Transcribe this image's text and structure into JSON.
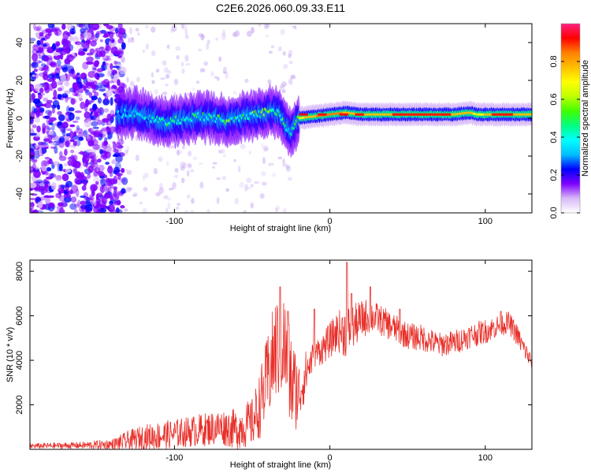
{
  "title": "C2E6.2026.060.09.33.E11",
  "colors": {
    "snr_line": "#e8302a",
    "ridge_core": "#e8303a",
    "ridge_mid": "#7ee040",
    "ridge_edge": "#36e0c8",
    "noise": "#5a1ee0",
    "frame": "#000000"
  },
  "chart_data": [
    {
      "type": "heatmap",
      "title": "C2E6.2026.060.09.33.E11",
      "xlabel": "Height of straight line (km)",
      "ylabel": "Frequency (Hz)",
      "xlim": [
        -193,
        130
      ],
      "ylim": [
        -50,
        50
      ],
      "xticks": [
        -100,
        0,
        100
      ],
      "xtick_labels": [
        "-100",
        "0",
        "100"
      ],
      "yticks": [
        -40,
        -20,
        0,
        20,
        40
      ],
      "ytick_labels": [
        "-40",
        "-20",
        "0",
        "20",
        "40"
      ],
      "colorbar": {
        "label": "Normalized spectral amplitude",
        "range": [
          0,
          1
        ],
        "ticks": [
          0.0,
          0.2,
          0.4,
          0.6,
          0.8
        ],
        "tick_labels": [
          "0.0",
          "0.2",
          "0.4",
          "0.6",
          "0.8"
        ],
        "colormap": [
          "#ffffff",
          "#d8b8f8",
          "#7f00ff",
          "#0000ff",
          "#00bfff",
          "#00ffff",
          "#00ff80",
          "#40ff00",
          "#bfff00",
          "#ffff00",
          "#ffbf00",
          "#ff8000",
          "#ff0000",
          "#ff1f7f"
        ]
      },
      "ridge": {
        "x": [
          -135,
          -125,
          -115,
          -105,
          -95,
          -85,
          -75,
          -65,
          -55,
          -45,
          -38,
          -32,
          -28,
          -25,
          -20,
          -10,
          0,
          10,
          20,
          40,
          60,
          80,
          90,
          95,
          100,
          110,
          130
        ],
        "y": [
          2,
          3,
          0,
          -2,
          -1,
          1,
          0,
          -1,
          1,
          2,
          4,
          2,
          -4,
          -8,
          0,
          1,
          2,
          3,
          2,
          2,
          2,
          2,
          3,
          2,
          2,
          2,
          2
        ],
        "amplitude": [
          0.35,
          0.4,
          0.45,
          0.5,
          0.45,
          0.5,
          0.5,
          0.55,
          0.5,
          0.55,
          0.6,
          0.6,
          0.5,
          0.4,
          0.7,
          0.8,
          0.85,
          0.8,
          0.8,
          0.75,
          0.7,
          0.75,
          0.8,
          0.65,
          0.75,
          0.75,
          0.75
        ]
      }
    },
    {
      "type": "line",
      "xlabel": "Height of straight line (km)",
      "ylabel": "SNR (10 * v/v)",
      "xlim": [
        -193,
        130
      ],
      "ylim": [
        0,
        8500
      ],
      "xticks": [
        -100,
        0,
        100
      ],
      "xtick_labels": [
        "-100",
        "0",
        "100"
      ],
      "yticks": [
        2000,
        4000,
        6000,
        8000
      ],
      "ytick_labels": [
        "2000",
        "4000",
        "6000",
        "8000"
      ],
      "series": [
        {
          "name": "SNR",
          "x": [
            -193,
            -160,
            -140,
            -130,
            -120,
            -110,
            -100,
            -90,
            -80,
            -70,
            -60,
            -50,
            -45,
            -40,
            -35,
            -30,
            -25,
            -20,
            -15,
            -10,
            -5,
            0,
            5,
            10,
            15,
            20,
            25,
            30,
            40,
            50,
            60,
            70,
            80,
            90,
            100,
            110,
            115,
            120,
            125,
            130
          ],
          "y": [
            150,
            180,
            220,
            380,
            550,
            600,
            700,
            800,
            900,
            1000,
            900,
            1200,
            2000,
            3200,
            4500,
            4800,
            3000,
            2500,
            3500,
            4300,
            4500,
            4900,
            5300,
            5300,
            5500,
            5800,
            6000,
            5900,
            5500,
            5100,
            5000,
            4700,
            4800,
            5100,
            5300,
            5600,
            5700,
            5200,
            4500,
            3900
          ],
          "noise": [
            120,
            150,
            250,
            450,
            550,
            650,
            650,
            700,
            750,
            800,
            900,
            1100,
            1500,
            2000,
            2400,
            2500,
            2400,
            1500,
            1000,
            600,
            700,
            800,
            900,
            1200,
            1000,
            900,
            800,
            700,
            650,
            600,
            600,
            550,
            550,
            550,
            550,
            500,
            500,
            500,
            450,
            400
          ],
          "peaks": [
            [
              -32,
              7300
            ],
            [
              -27,
              6200
            ],
            [
              -10,
              6300
            ],
            [
              11,
              8400
            ],
            [
              14,
              7000
            ],
            [
              26,
              7300
            ],
            [
              45,
              6300
            ],
            [
              110,
              6200
            ]
          ]
        }
      ]
    }
  ]
}
